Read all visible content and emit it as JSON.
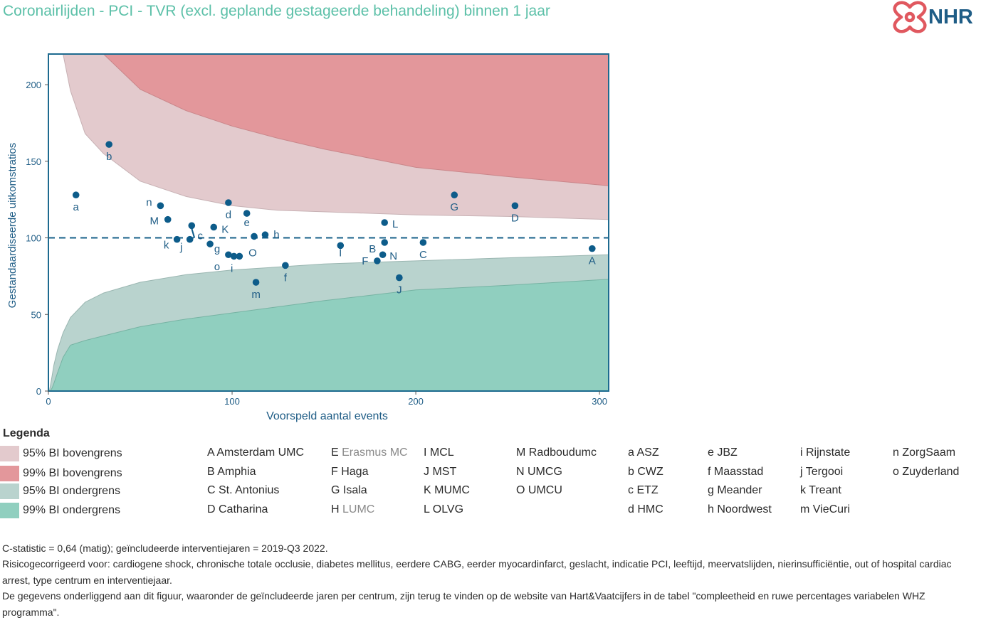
{
  "title": "Coronairlijden - PCI - TVR (excl. geplande gestageerde behandeling) binnen 1 jaar",
  "logo": {
    "text": "NHR",
    "icon": "nhr-heart-logo-icon"
  },
  "colors": {
    "title": "#5cc0a8",
    "upper95": "#e3cacd",
    "upper99": "#e3979b",
    "lower95": "#b9d3ce",
    "lower99": "#90cfbf",
    "points": "#0d5c8a",
    "frame": "#1d6a8f"
  },
  "chart_data": {
    "type": "scatter",
    "xlabel": "Voorspeld aantal events",
    "ylabel": "Gestandaardiseerde uitkomstratios",
    "xlim": [
      0,
      305
    ],
    "ylim": [
      0,
      220
    ],
    "xticks": [
      0,
      100,
      200,
      300
    ],
    "yticks": [
      0,
      50,
      100,
      150,
      200
    ],
    "reference_line": 100,
    "points": [
      {
        "label": "a",
        "x": 15,
        "y": 128
      },
      {
        "label": "b",
        "x": 33,
        "y": 161
      },
      {
        "label": "n",
        "x": 61,
        "y": 121
      },
      {
        "label": "M",
        "x": 65,
        "y": 112
      },
      {
        "label": "k",
        "x": 70,
        "y": 99
      },
      {
        "label": "j",
        "x": 77,
        "y": 99
      },
      {
        "label": "c",
        "x": 78,
        "y": 108
      },
      {
        "label": "g",
        "x": 88,
        "y": 96
      },
      {
        "label": "K",
        "x": 90,
        "y": 107
      },
      {
        "label": "d",
        "x": 98,
        "y": 123
      },
      {
        "label": "o",
        "x": 98,
        "y": 89
      },
      {
        "label": "i",
        "x": 101,
        "y": 88
      },
      {
        "label": "",
        "x": 104,
        "y": 88
      },
      {
        "label": "e",
        "x": 108,
        "y": 116
      },
      {
        "label": "O",
        "x": 112,
        "y": 101
      },
      {
        "label": "h",
        "x": 118,
        "y": 102
      },
      {
        "label": "m",
        "x": 113,
        "y": 71
      },
      {
        "label": "f",
        "x": 129,
        "y": 82
      },
      {
        "label": "I",
        "x": 159,
        "y": 95
      },
      {
        "label": "F",
        "x": 179,
        "y": 85
      },
      {
        "label": "B",
        "x": 183,
        "y": 97
      },
      {
        "label": "N",
        "x": 182,
        "y": 89
      },
      {
        "label": "L",
        "x": 183,
        "y": 110
      },
      {
        "label": "J",
        "x": 191,
        "y": 74
      },
      {
        "label": "C",
        "x": 204,
        "y": 97
      },
      {
        "label": "G",
        "x": 221,
        "y": 128
      },
      {
        "label": "D",
        "x": 254,
        "y": 121
      },
      {
        "label": "A",
        "x": 296,
        "y": 93
      }
    ],
    "bands": {
      "x": [
        0.5,
        1,
        2,
        3,
        5,
        8,
        12,
        20,
        30,
        50,
        75,
        100,
        125,
        150,
        200,
        250,
        305
      ],
      "upper99": [
        null,
        null,
        null,
        null,
        null,
        null,
        null,
        null,
        220,
        197,
        183,
        173,
        165,
        158,
        146,
        140,
        134
      ],
      "upper95": [
        null,
        null,
        null,
        null,
        null,
        220,
        196,
        168,
        155,
        137,
        127,
        121,
        118,
        117,
        115,
        114,
        112
      ],
      "lower95": [
        0,
        3,
        10,
        17,
        27,
        38,
        48,
        58,
        64,
        71,
        76,
        79,
        81,
        83,
        85,
        87,
        89
      ],
      "lower99": [
        0,
        0,
        2,
        5,
        12,
        22,
        30,
        33,
        36,
        42,
        47,
        51,
        55,
        59,
        66,
        69,
        73
      ]
    }
  },
  "legend": {
    "title": "Legenda",
    "bands": [
      {
        "label": "95% BI bovengrens",
        "color": "#e3cacd"
      },
      {
        "label": "99% BI bovengrens",
        "color": "#e3979b"
      },
      {
        "label": "95% BI ondergrens",
        "color": "#b9d3ce"
      },
      {
        "label": "99% BI ondergrens",
        "color": "#90cfbf"
      }
    ],
    "columns": [
      [
        {
          "code": "A",
          "name": "Amsterdam UMC",
          "muted": false
        },
        {
          "code": "B",
          "name": "Amphia",
          "muted": false
        },
        {
          "code": "C",
          "name": "St. Antonius",
          "muted": false
        },
        {
          "code": "D",
          "name": "Catharina",
          "muted": false
        }
      ],
      [
        {
          "code": "E",
          "name": "Erasmus MC",
          "muted": true
        },
        {
          "code": "F",
          "name": "Haga",
          "muted": false
        },
        {
          "code": "G",
          "name": "Isala",
          "muted": false
        },
        {
          "code": "H",
          "name": "LUMC",
          "muted": true
        }
      ],
      [
        {
          "code": "I",
          "name": "MCL",
          "muted": false
        },
        {
          "code": "J",
          "name": "MST",
          "muted": false
        },
        {
          "code": "K",
          "name": "MUMC",
          "muted": false
        },
        {
          "code": "L",
          "name": "OLVG",
          "muted": false
        }
      ],
      [
        {
          "code": "M",
          "name": "Radboudumc",
          "muted": false
        },
        {
          "code": "N",
          "name": "UMCG",
          "muted": false
        },
        {
          "code": "O",
          "name": "UMCU",
          "muted": false
        }
      ],
      [
        {
          "code": "a",
          "name": "ASZ",
          "muted": false
        },
        {
          "code": "b",
          "name": "CWZ",
          "muted": false
        },
        {
          "code": "c",
          "name": "ETZ",
          "muted": false
        },
        {
          "code": "d",
          "name": "HMC",
          "muted": false
        }
      ],
      [
        {
          "code": "e",
          "name": "JBZ",
          "muted": false
        },
        {
          "code": "f",
          "name": "Maasstad",
          "muted": false
        },
        {
          "code": "g",
          "name": "Meander",
          "muted": false
        },
        {
          "code": "h",
          "name": "Noordwest",
          "muted": false
        }
      ],
      [
        {
          "code": "i",
          "name": "Rijnstate",
          "muted": false
        },
        {
          "code": "j",
          "name": "Tergooi",
          "muted": false
        },
        {
          "code": "k",
          "name": "Treant",
          "muted": false
        },
        {
          "code": "m",
          "name": "VieCuri",
          "muted": false
        }
      ],
      [
        {
          "code": "n",
          "name": "ZorgSaam",
          "muted": false
        },
        {
          "code": "o",
          "name": "Zuyderland",
          "muted": false
        }
      ]
    ]
  },
  "footnotes": [
    "C-statistic =  0,64 (matig); geïncludeerde interventiejaren = 2019-Q3 2022.",
    "Risicogecorrigeerd voor: cardiogene shock, chronische totale occlusie, diabetes mellitus, eerdere CABG, eerder myocardinfarct, geslacht, indicatie PCI, leeftijd, meervatslijden, nierinsufficiëntie, out of hospital cardiac arrest, type centrum en interventiejaar.",
    "De gegevens onderliggend aan dit figuur, waaronder de geïncludeerde jaren per centrum, zijn terug te vinden op de website van Hart&Vaatcijfers in de tabel \"compleetheid en ruwe percentages variabelen WHZ programma\"."
  ]
}
